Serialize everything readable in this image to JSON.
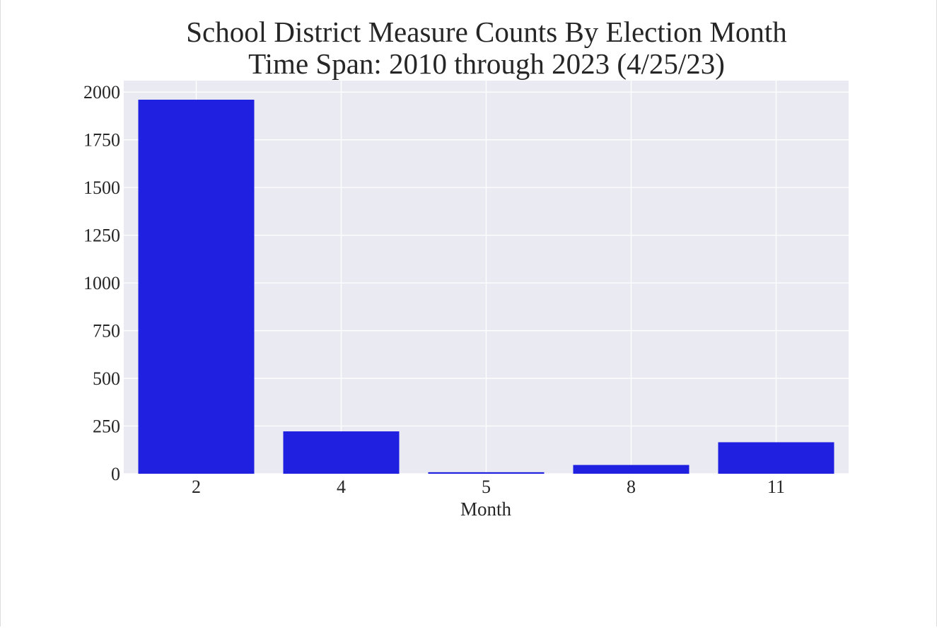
{
  "chart_data": {
    "type": "bar",
    "title": "School District Measure Counts By Election Month",
    "subtitle": "Time Span: 2010 through 2023 (4/25/23)",
    "xlabel": "Month",
    "ylabel": "",
    "categories": [
      "2",
      "4",
      "5",
      "8",
      "11"
    ],
    "values": [
      1960,
      222,
      8,
      46,
      165
    ],
    "ylim": [
      0,
      2060
    ],
    "yticks": [
      0,
      250,
      500,
      750,
      1000,
      1250,
      1500,
      1750,
      2000
    ],
    "ytick_labels": [
      "0",
      "250",
      "500",
      "750",
      "1000",
      "1250",
      "1500",
      "1750",
      "2000"
    ],
    "grid": true,
    "bar_color": "#2020e0",
    "plot_background": "#eaeaf2",
    "grid_color": "#ffffff"
  }
}
